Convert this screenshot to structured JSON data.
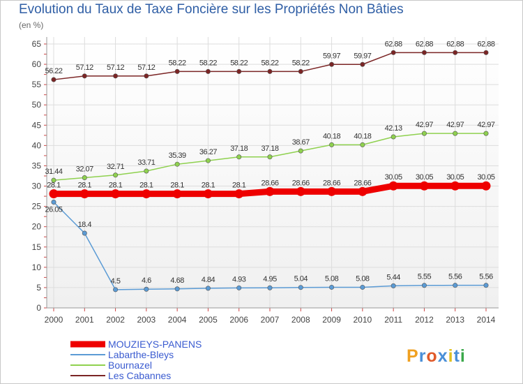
{
  "chart_data": {
    "type": "line",
    "title": "Evolution du Taux de Taxe Foncière sur les Propriétés Non Bâties",
    "ylabel": "(en %)",
    "xlabel": "",
    "ylim": [
      0,
      65
    ],
    "yticks": [
      0,
      5,
      10,
      15,
      20,
      25,
      30,
      35,
      40,
      45,
      50,
      55,
      60,
      65
    ],
    "categories": [
      "2000",
      "2001",
      "2002",
      "2003",
      "2004",
      "2005",
      "2006",
      "2007",
      "2008",
      "2009",
      "2010",
      "2011",
      "2012",
      "2013",
      "2014"
    ],
    "series": [
      {
        "name": "MOUZIEYS-PANENS",
        "color": "#ee0000",
        "values": [
          28.1,
          28.1,
          28.1,
          28.1,
          28.1,
          28.1,
          28.1,
          28.66,
          28.66,
          28.66,
          28.66,
          30.05,
          30.05,
          30.05,
          30.05
        ],
        "labels": [
          "28.1",
          "28.1",
          "28.1",
          "28.1",
          "28.1",
          "28.1",
          "28.1",
          "28.66",
          "28.66",
          "28.66",
          "28.66",
          "30.05",
          "30.05",
          "30.05",
          "30.05"
        ]
      },
      {
        "name": "Labarthe-Bleys",
        "color": "#5b9bd5",
        "values": [
          26.05,
          18.4,
          4.5,
          4.6,
          4.68,
          4.84,
          4.93,
          4.95,
          5.04,
          5.08,
          5.08,
          5.44,
          5.55,
          5.56,
          5.56
        ],
        "labels": [
          "26.05",
          "18.4",
          "4.5",
          "4.6",
          "4.68",
          "4.84",
          "4.93",
          "4.95",
          "5.04",
          "5.08",
          "5.08",
          "5.44",
          "5.55",
          "5.56",
          "5.56"
        ]
      },
      {
        "name": "Bournazel",
        "color": "#8fd14f",
        "values": [
          31.44,
          32.07,
          32.71,
          33.71,
          35.39,
          36.27,
          37.18,
          37.18,
          38.67,
          40.18,
          40.18,
          42.13,
          42.97,
          42.97,
          42.97
        ],
        "labels": [
          "31.44",
          "32.07",
          "32.71",
          "33.71",
          "35.39",
          "36.27",
          "37.18",
          "37.18",
          "38.67",
          "40.18",
          "40.18",
          "42.13",
          "42.97",
          "42.97",
          "42.97"
        ]
      },
      {
        "name": "Les Cabannes",
        "color": "#7b2525",
        "values": [
          56.22,
          57.12,
          57.12,
          57.12,
          58.22,
          58.22,
          58.22,
          58.22,
          58.22,
          59.97,
          59.97,
          62.88,
          62.88,
          62.88,
          62.88
        ],
        "labels": [
          "56.22",
          "57.12",
          "57.12",
          "57.12",
          "58.22",
          "58.22",
          "58.22",
          "58.22",
          "58.22",
          "59.97",
          "59.97",
          "62.88",
          "62.88",
          "62.88",
          "62.88"
        ]
      }
    ],
    "legend": "bottom-left"
  },
  "brand": {
    "text": "Proxiti"
  }
}
